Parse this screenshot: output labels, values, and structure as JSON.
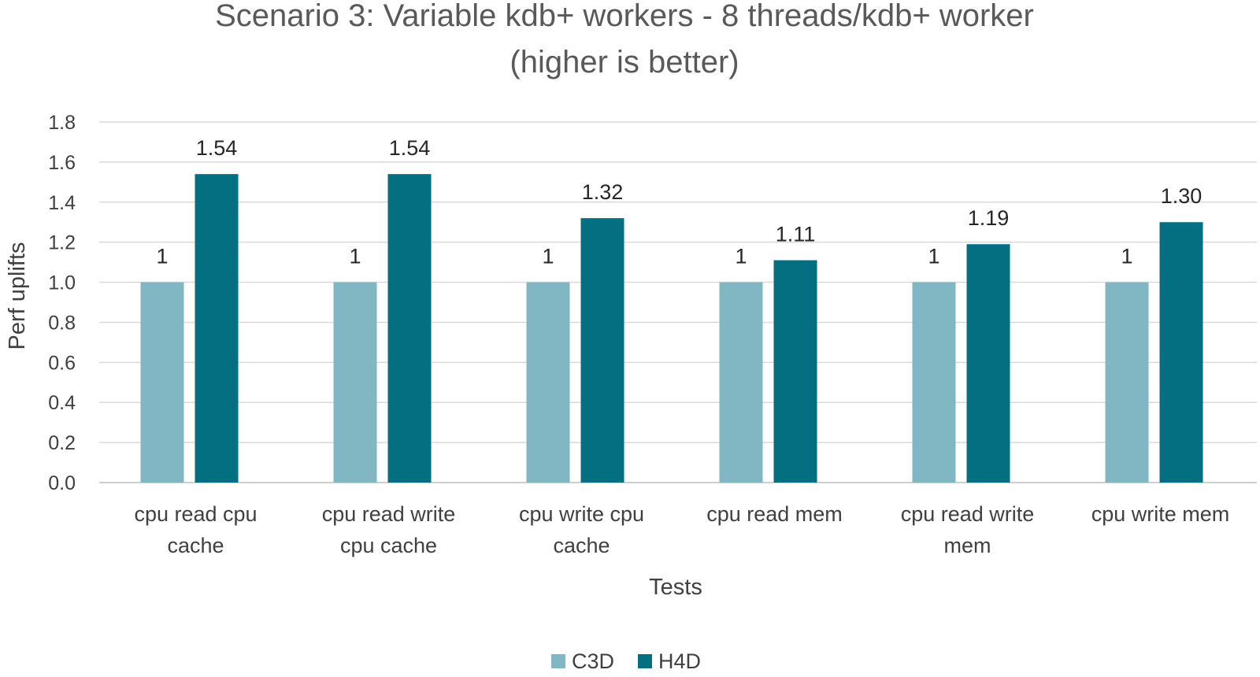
{
  "chart_data": {
    "type": "bar",
    "title": [
      "Scenario 3: Variable kdb+ workers - 8 threads/kdb+ worker",
      "(higher is better)"
    ],
    "xlabel": "Tests",
    "ylabel": "Perf  uplifts",
    "ylim": [
      0,
      1.8
    ],
    "yticks": [
      "0.0",
      "0.2",
      "0.4",
      "0.6",
      "0.8",
      "1.0",
      "1.2",
      "1.4",
      "1.6",
      "1.8"
    ],
    "grid": true,
    "legend_position": "bottom",
    "categories": [
      [
        "cpu read cpu",
        "cache"
      ],
      [
        "cpu read write",
        "cpu cache"
      ],
      [
        "cpu write cpu",
        "cache"
      ],
      [
        "cpu read mem"
      ],
      [
        "cpu read write",
        "mem"
      ],
      [
        "cpu write mem"
      ]
    ],
    "series": [
      {
        "name": "C3D",
        "color": "#81b6c3",
        "values": [
          1,
          1,
          1,
          1,
          1,
          1
        ],
        "labels": [
          "1",
          "1",
          "1",
          "1",
          "1",
          "1"
        ]
      },
      {
        "name": "H4D",
        "color": "#046f81",
        "values": [
          1.54,
          1.54,
          1.32,
          1.11,
          1.19,
          1.3
        ],
        "labels": [
          "1.54",
          "1.54",
          "1.32",
          "1.11",
          "1.19",
          "1.30"
        ]
      }
    ]
  }
}
